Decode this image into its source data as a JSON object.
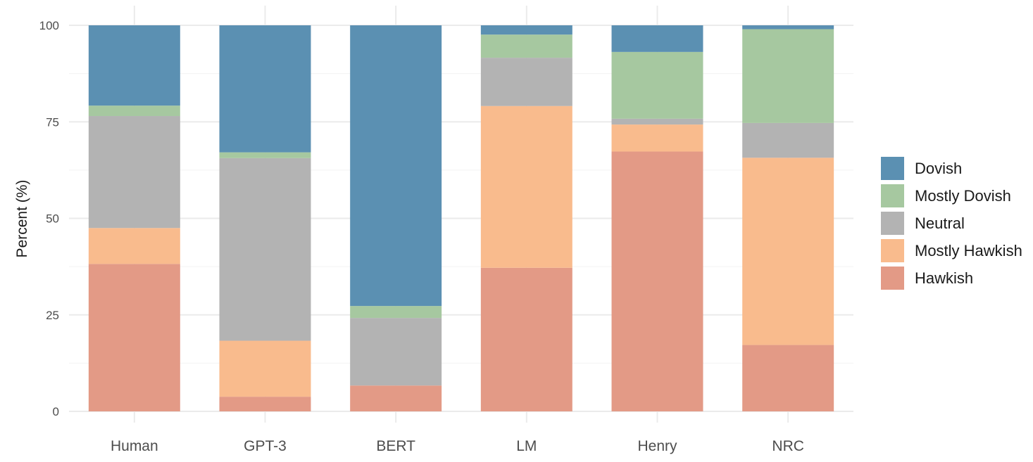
{
  "chart_data": {
    "type": "bar",
    "stacked": true,
    "title": "",
    "xlabel": "",
    "ylabel": "Percent (%)",
    "ylim": [
      0,
      100
    ],
    "yticks": [
      0,
      25,
      50,
      75,
      100
    ],
    "grid": true,
    "legend_position": "right",
    "categories": [
      "Human",
      "GPT-3",
      "BERT",
      "LM",
      "Henry",
      "NRC"
    ],
    "series": [
      {
        "name": "Hawkish",
        "color": "#e39a86",
        "values": [
          38.2,
          3.8,
          6.7,
          37.2,
          67.3,
          17.2
        ]
      },
      {
        "name": "Mostly Hawkish",
        "color": "#f9bb8d",
        "values": [
          9.3,
          14.5,
          0.0,
          41.9,
          7.0,
          48.5
        ]
      },
      {
        "name": "Neutral",
        "color": "#b3b3b3",
        "values": [
          29.0,
          47.3,
          17.5,
          12.5,
          1.5,
          9.0
        ]
      },
      {
        "name": "Mostly Dovish",
        "color": "#a6c8a0",
        "values": [
          2.7,
          1.5,
          3.1,
          6.0,
          17.3,
          24.3
        ]
      },
      {
        "name": "Dovish",
        "color": "#5b90b2",
        "values": [
          20.8,
          32.9,
          72.7,
          2.4,
          6.9,
          1.0
        ]
      }
    ]
  },
  "legend": {
    "items": [
      {
        "label": "Dovish",
        "color": "#5b90b2"
      },
      {
        "label": "Mostly Dovish",
        "color": "#a6c8a0"
      },
      {
        "label": "Neutral",
        "color": "#b3b3b3"
      },
      {
        "label": "Mostly Hawkish",
        "color": "#f9bb8d"
      },
      {
        "label": "Hawkish",
        "color": "#e39a86"
      }
    ]
  }
}
